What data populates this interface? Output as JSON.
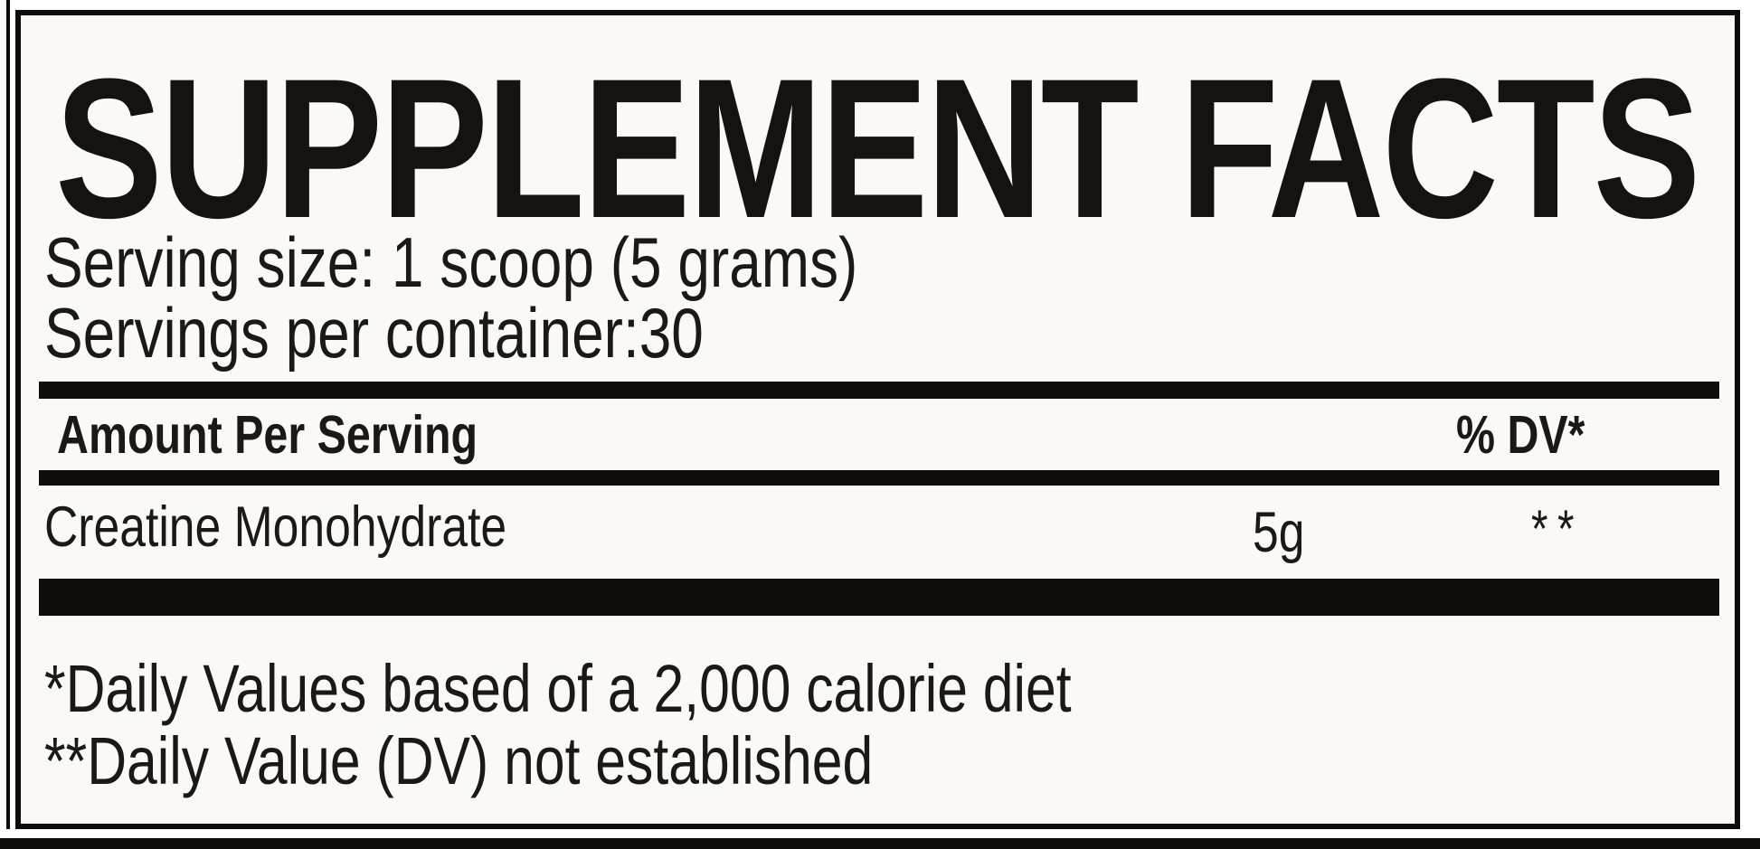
{
  "label": {
    "title": "SUPPLEMENT FACTS",
    "serving_size": "Serving size: 1 scoop (5 grams)",
    "servings_per_container": "Servings per container:30",
    "columns": {
      "amount": "Amount Per Serving",
      "dv": "% DV*"
    },
    "rows": [
      {
        "name": "Creatine Monohydrate",
        "amount": "5g",
        "dv": "**"
      }
    ],
    "footnotes": [
      "*Daily Values based of a 2,000 calorie diet",
      "**Daily Value (DV) not established"
    ],
    "colors": {
      "page_background": "#ffffff",
      "panel_background": "#faf9f6",
      "ink": "#0d0c0a",
      "text": "#1b1815"
    }
  }
}
